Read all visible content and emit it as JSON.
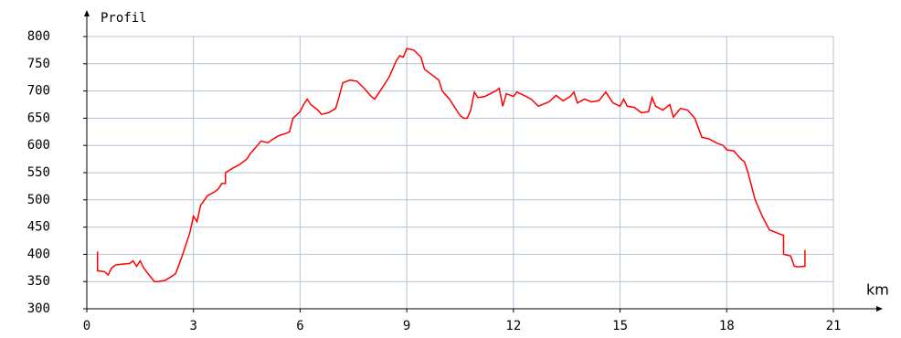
{
  "chart_data": {
    "type": "line",
    "y_axis_label": "Profil",
    "x_axis_label": "km",
    "color": "#ff0000",
    "grid": true,
    "grid_color": "#b4c3d7",
    "xlim": [
      0,
      21
    ],
    "xticks": [
      0,
      3,
      6,
      9,
      12,
      15,
      18,
      21
    ],
    "ylim": [
      300,
      800
    ],
    "yticks": [
      300,
      350,
      400,
      450,
      500,
      550,
      600,
      650,
      700,
      750,
      800
    ],
    "x": [
      0.3,
      0.3,
      0.5,
      0.6,
      0.7,
      0.8,
      1.0,
      1.2,
      1.3,
      1.4,
      1.5,
      1.6,
      1.8,
      1.9,
      2.0,
      2.2,
      2.4,
      2.5,
      2.7,
      2.9,
      3.0,
      3.1,
      3.2,
      3.4,
      3.6,
      3.7,
      3.8,
      3.9,
      3.9,
      4.1,
      4.3,
      4.5,
      4.6,
      4.8,
      4.9,
      5.1,
      5.2,
      5.4,
      5.6,
      5.7,
      5.8,
      6.0,
      6.1,
      6.2,
      6.3,
      6.5,
      6.6,
      6.8,
      7.0,
      7.1,
      7.2,
      7.4,
      7.6,
      7.8,
      8.0,
      8.1,
      8.2,
      8.4,
      8.5,
      8.6,
      8.7,
      8.8,
      8.9,
      9.0,
      9.2,
      9.4,
      9.5,
      9.7,
      9.9,
      10.0,
      10.2,
      10.4,
      10.5,
      10.6,
      10.7,
      10.8,
      10.9,
      11.0,
      11.2,
      11.5,
      11.6,
      11.7,
      11.8,
      12.0,
      12.1,
      12.3,
      12.5,
      12.7,
      13.0,
      13.2,
      13.4,
      13.6,
      13.7,
      13.8,
      14.0,
      14.2,
      14.4,
      14.6,
      14.8,
      15.0,
      15.1,
      15.2,
      15.4,
      15.6,
      15.8,
      15.9,
      16.0,
      16.2,
      16.4,
      16.5,
      16.7,
      16.9,
      17.1,
      17.3,
      17.5,
      17.7,
      17.9,
      18.0,
      18.2,
      18.4,
      18.5,
      18.6,
      18.8,
      19.0,
      19.2,
      19.5,
      19.6,
      19.6,
      19.8,
      19.9,
      20.0,
      20.2,
      20.2
    ],
    "values": [
      405,
      370,
      368,
      362,
      375,
      380,
      382,
      383,
      388,
      378,
      388,
      375,
      358,
      350,
      350,
      352,
      360,
      365,
      400,
      440,
      470,
      460,
      490,
      508,
      515,
      520,
      530,
      530,
      550,
      558,
      565,
      575,
      585,
      600,
      608,
      605,
      610,
      618,
      622,
      625,
      650,
      662,
      675,
      685,
      675,
      665,
      657,
      660,
      668,
      690,
      715,
      720,
      718,
      705,
      690,
      685,
      695,
      715,
      725,
      740,
      755,
      765,
      762,
      778,
      775,
      762,
      740,
      730,
      720,
      700,
      685,
      665,
      655,
      650,
      650,
      665,
      698,
      688,
      690,
      700,
      705,
      672,
      695,
      690,
      698,
      692,
      685,
      672,
      680,
      692,
      682,
      690,
      698,
      678,
      685,
      680,
      682,
      698,
      678,
      672,
      685,
      672,
      670,
      660,
      662,
      688,
      672,
      665,
      675,
      652,
      668,
      665,
      650,
      615,
      612,
      605,
      600,
      592,
      590,
      575,
      570,
      550,
      500,
      470,
      445,
      437,
      435,
      400,
      397,
      378,
      377,
      378,
      408
    ]
  }
}
